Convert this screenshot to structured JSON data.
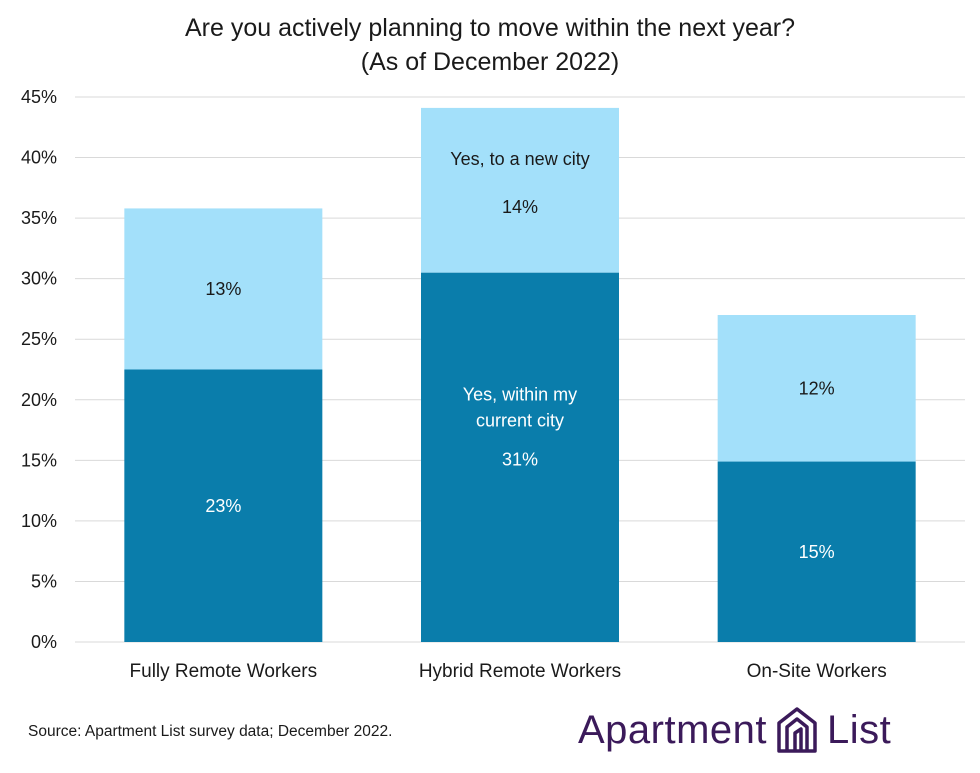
{
  "chart_data": {
    "type": "bar",
    "stacked": true,
    "title_lines": [
      "Are you actively planning to move within the next year?",
      "(As of December 2022)"
    ],
    "categories": [
      "Fully Remote Workers",
      "Hybrid Remote Workers",
      "On-Site Workers"
    ],
    "series": [
      {
        "name": "Yes, within my current city",
        "values": [
          22.5,
          30.5,
          14.9
        ],
        "labels": [
          "23%",
          "31%",
          "15%"
        ],
        "color": "#0a7dab",
        "label_color": "#ffffff"
      },
      {
        "name": "Yes, to a new city",
        "values": [
          13.3,
          13.6,
          12.1
        ],
        "labels": [
          "13%",
          "14%",
          "12%"
        ],
        "color": "#a3e0fa",
        "label_color": "#1a1a1a"
      }
    ],
    "annotations": {
      "in_city": [
        "Yes, within my",
        "current city"
      ],
      "new_city": "Yes, to a new city"
    },
    "ylim": [
      0,
      45
    ],
    "yticks": [
      0,
      5,
      10,
      15,
      20,
      25,
      30,
      35,
      40,
      45
    ],
    "ytick_labels": [
      "0%",
      "5%",
      "10%",
      "15%",
      "20%",
      "25%",
      "30%",
      "35%",
      "40%",
      "45%"
    ],
    "grid": true,
    "xlabel": "",
    "ylabel": ""
  },
  "footer": {
    "source": "Source: Apartment List survey data; December 2022.",
    "logo_word1": "Apartment",
    "logo_word2": "List"
  },
  "colors": {
    "logo": "#3b1a5a"
  }
}
